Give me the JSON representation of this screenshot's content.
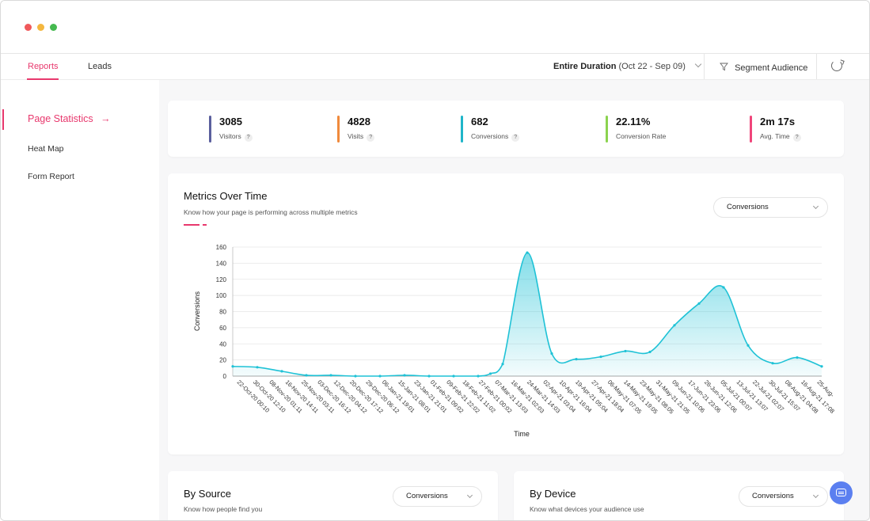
{
  "nav": {
    "tabs": [
      {
        "label": "Reports",
        "active": true
      },
      {
        "label": "Leads",
        "active": false
      }
    ],
    "duration_label": "Entire Duration",
    "duration_range": "(Oct 22 - Sep 09)",
    "segment_label": "Segment Audience",
    "icons": {
      "filter": "filter-icon",
      "refresh": "refresh-icon",
      "chevron": "chevron-down-icon"
    }
  },
  "sidebar": {
    "items": [
      {
        "label": "Page Statistics",
        "active": true,
        "icon": "arrow-right-icon"
      },
      {
        "label": "Heat Map",
        "active": false
      },
      {
        "label": "Form Report",
        "active": false
      }
    ]
  },
  "stats": [
    {
      "value": "3085",
      "label": "Visitors",
      "color": "#5b5f9e",
      "help": true
    },
    {
      "value": "4828",
      "label": "Visits",
      "color": "#f08a3c",
      "help": true
    },
    {
      "value": "682",
      "label": "Conversions",
      "color": "#1fb5c9",
      "help": true
    },
    {
      "value": "22.11%",
      "label": "Conversion Rate",
      "color": "#8bd34f",
      "help": false
    },
    {
      "value": "2m 17s",
      "label": "Avg. Time",
      "color": "#f0457a",
      "help": true
    }
  ],
  "help_glyph": "?",
  "metrics": {
    "title": "Metrics Over Time",
    "subtitle": "Know how your page is performing across multiple metrics",
    "dropdown_value": "Conversions"
  },
  "chart_data": {
    "type": "area",
    "ylabel": "Conversions",
    "xlabel": "Time",
    "ylim": [
      0,
      160
    ],
    "yticks": [
      0,
      20,
      40,
      60,
      80,
      100,
      120,
      140,
      160
    ],
    "grid": true,
    "color": "#1fc2d6",
    "categories": [
      "22-Oct-20 00:10",
      "30-Oct-20 12:10",
      "08-Nov-20 01:11",
      "16-Nov-20 14:11",
      "25-Nov-20 03:11",
      "03-Dec-20 16:12",
      "12-Dec-20 04:12",
      "20-Dec-20 17:12",
      "29-Dec-20 06:12",
      "06-Jan-21 19:01",
      "15-Jan-21 08:01",
      "23-Jan-21 21:01",
      "01-Feb-21 09:02",
      "09-Feb-21 22:02",
      "18-Feb-21 11:02",
      "27-Feb-21 00:02",
      "07-Mar-21 13:03",
      "16-Mar-21 02:03",
      "24-Mar-21 14:03",
      "02-Apr-21 03:04",
      "10-Apr-21 16:04",
      "19-Apr-21 05:04",
      "27-Apr-21 18:04",
      "06-May-21 07:05",
      "14-May-21 19:05",
      "23-May-21 08:05",
      "31-May-21 21:05",
      "09-Jun-21 10:06",
      "17-Jun-21 23:06",
      "26-Jun-21 12:06",
      "05-Jul-21 00:07",
      "13-Jul-21 13:07",
      "22-Jul-21 02:07",
      "30-Jul-21 15:07",
      "08-Aug-21 04:08",
      "16-Aug-21 17:08",
      "25-Aug-"
    ],
    "points": [
      {
        "x": 0.0,
        "y": 12
      },
      {
        "x": 2.0,
        "y": 11
      },
      {
        "x": 4.0,
        "y": 6
      },
      {
        "x": 6.0,
        "y": 1
      },
      {
        "x": 8.0,
        "y": 1
      },
      {
        "x": 10.0,
        "y": 0
      },
      {
        "x": 12.0,
        "y": 0
      },
      {
        "x": 14.0,
        "y": 1
      },
      {
        "x": 16.0,
        "y": 0
      },
      {
        "x": 18.0,
        "y": 0
      },
      {
        "x": 20.0,
        "y": 0
      },
      {
        "x": 21.0,
        "y": 3
      },
      {
        "x": 22.0,
        "y": 15
      },
      {
        "x": 24.0,
        "y": 153
      },
      {
        "x": 26.0,
        "y": 28
      },
      {
        "x": 28.0,
        "y": 21
      },
      {
        "x": 30.0,
        "y": 24
      },
      {
        "x": 32.0,
        "y": 31
      },
      {
        "x": 34.0,
        "y": 30
      },
      {
        "x": 36.0,
        "y": 63
      },
      {
        "x": 38.0,
        "y": 90
      },
      {
        "x": 40.0,
        "y": 110
      },
      {
        "x": 42.0,
        "y": 38
      },
      {
        "x": 44.0,
        "y": 16
      },
      {
        "x": 46.0,
        "y": 23
      },
      {
        "x": 48.0,
        "y": 12
      }
    ],
    "x_max": 48.0
  },
  "by_source": {
    "title": "By Source",
    "subtitle": "Know how people find you",
    "dropdown_value": "Conversions"
  },
  "by_device": {
    "title": "By Device",
    "subtitle": "Know what devices your audience use",
    "dropdown_value": "Conversions"
  },
  "chat": {
    "icon": "chat-icon"
  }
}
